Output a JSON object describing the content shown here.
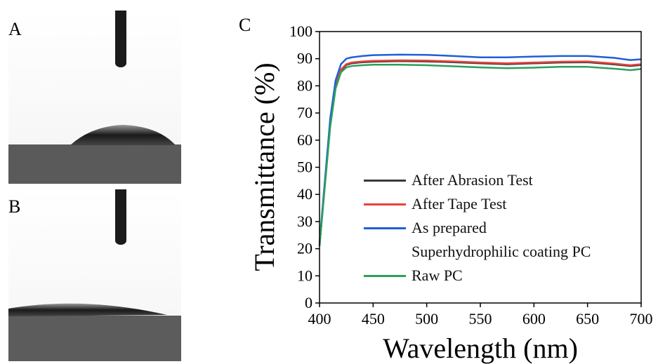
{
  "panel_labels": [
    "A",
    "B",
    "C"
  ],
  "chart_data": {
    "type": "line",
    "xlabel": "Wavelength (nm)",
    "ylabel": "Transmittance (%)",
    "x": [
      400,
      405,
      410,
      415,
      420,
      425,
      430,
      440,
      450,
      475,
      500,
      525,
      550,
      575,
      600,
      625,
      650,
      675,
      690,
      700
    ],
    "series": [
      {
        "name": "After Abrasion Test",
        "color": "#3a3a3a",
        "values": [
          21,
          44,
          66,
          80,
          85.8,
          87.7,
          88.3,
          88.7,
          88.9,
          89.1,
          89,
          88.7,
          88.3,
          88,
          88.3,
          88.6,
          88.7,
          87.9,
          87.3,
          87.7
        ]
      },
      {
        "name": "After Tape Test",
        "color": "#e8413c",
        "values": [
          21,
          44,
          66,
          80,
          86,
          88,
          88.6,
          89,
          89.2,
          89.4,
          89.3,
          89,
          88.6,
          88.3,
          88.6,
          88.9,
          89,
          88.2,
          87.6,
          88
        ]
      },
      {
        "name": "As prepared\nSuperhydrophilic coating PC",
        "color": "#1f5fd6",
        "values": [
          22,
          45,
          68,
          82,
          88,
          90,
          90.5,
          91,
          91.3,
          91.5,
          91.4,
          91,
          90.5,
          90.5,
          90.8,
          91,
          91,
          90.3,
          89.5,
          89.8
        ]
      },
      {
        "name": "Raw PC",
        "color": "#2ca05a",
        "values": [
          21,
          43,
          65,
          79,
          85,
          86.8,
          87.3,
          87.6,
          87.8,
          87.8,
          87.6,
          87.2,
          86.8,
          86.5,
          86.7,
          87,
          87,
          86.3,
          85.8,
          86.2
        ]
      }
    ],
    "xlim": [
      400,
      700
    ],
    "xticks": [
      400,
      450,
      500,
      550,
      600,
      650,
      700
    ],
    "ylim": [
      0,
      100
    ],
    "yticks": [
      0,
      10,
      20,
      30,
      40,
      50,
      60,
      70,
      80,
      90,
      100
    ]
  }
}
